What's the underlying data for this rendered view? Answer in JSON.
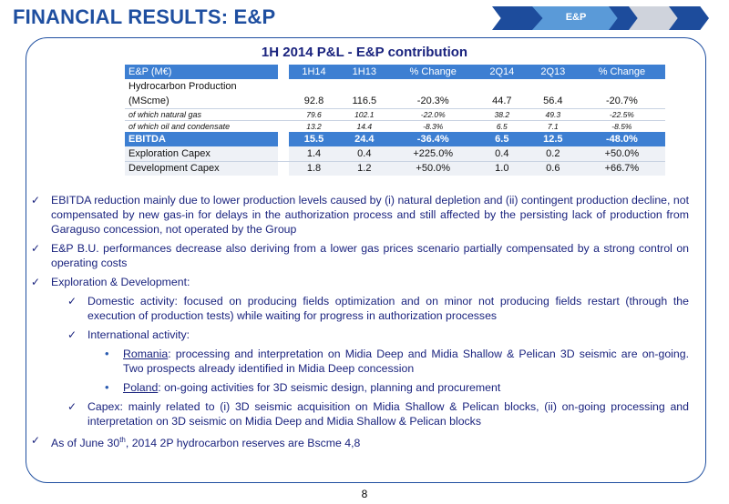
{
  "header": {
    "title_left": "FINANCIAL  RESULTS: ",
    "title_right": "E&P",
    "nav_active": "E&P"
  },
  "table": {
    "title": "1H 2014 P&L - E&P contribution",
    "headers": [
      "E&P (M€)",
      "1H14",
      "1H13",
      "% Change",
      "2Q14",
      "2Q13",
      "% Change"
    ],
    "rows": {
      "hydro_label_1": "Hydrocarbon Production",
      "hydro_label_2": "(MScme)",
      "hydro": [
        "92.8",
        "116.5",
        "-20.3%",
        "44.7",
        "56.4",
        "-20.7%"
      ],
      "gas_label": "of which natural gas",
      "gas": [
        "79.6",
        "102.1",
        "-22.0%",
        "38.2",
        "49.3",
        "-22.5%"
      ],
      "oil_label": "of which oil and condensate",
      "oil": [
        "13.2",
        "14.4",
        "-8.3%",
        "6.5",
        "7.1",
        "-8.5%"
      ],
      "ebitda_label": "EBITDA",
      "ebitda": [
        "15.5",
        "24.4",
        "-36.4%",
        "6.5",
        "12.5",
        "-48.0%"
      ],
      "expl_label": "Exploration Capex",
      "expl": [
        "1.4",
        "0.4",
        "+225.0%",
        "0.4",
        "0.2",
        "+50.0%"
      ],
      "dev_label": "Development Capex",
      "dev": [
        "1.8",
        "1.2",
        "+50.0%",
        "1.0",
        "0.6",
        "+66.7%"
      ]
    }
  },
  "bullets": {
    "b1": "EBITDA reduction mainly due to lower production levels caused by (i) natural depletion and (ii) contingent production decline, not compensated by new gas-in for delays in the authorization process and still affected by the persisting lack of production from Garaguso concession, not operated by the Group",
    "b2": "E&P B.U. performances decrease also deriving from a lower gas prices scenario partially compensated by a strong control on operating costs",
    "b3": "Exploration & Development:",
    "b3_1": "Domestic activity: focused on producing fields optimization and on minor not producing fields restart (through the execution of production tests) while waiting for progress in authorization processes",
    "b3_2": "International activity:",
    "romania_label": "Romania",
    "romania_text": ": processing and interpretation on Midia Deep and Midia Shallow & Pelican 3D seismic are on-going. Two prospects already identified in Midia Deep concession",
    "poland_label": "Poland",
    "poland_text": ": on-going activities for 3D seismic design, planning and procurement",
    "b3_3": "Capex: mainly related to (i) 3D seismic acquisition on Midia Shallow & Pelican blocks, (ii) on-going processing and interpretation on 3D seismic on Midia Deep and Midia Shallow & Pelican blocks",
    "b4_pre": "As of June 30",
    "b4_sup": "th",
    "b4_post": ", 2014 2P hydrocarbon reserves are Bscme 4,8"
  },
  "page_number": "8",
  "icons": {
    "check": "checkmark-icon",
    "bullet": "dot-icon"
  },
  "colors": {
    "brand_blue": "#1f4fa0",
    "table_header": "#3d7fd2",
    "nav_active": "#5a9ad8"
  }
}
